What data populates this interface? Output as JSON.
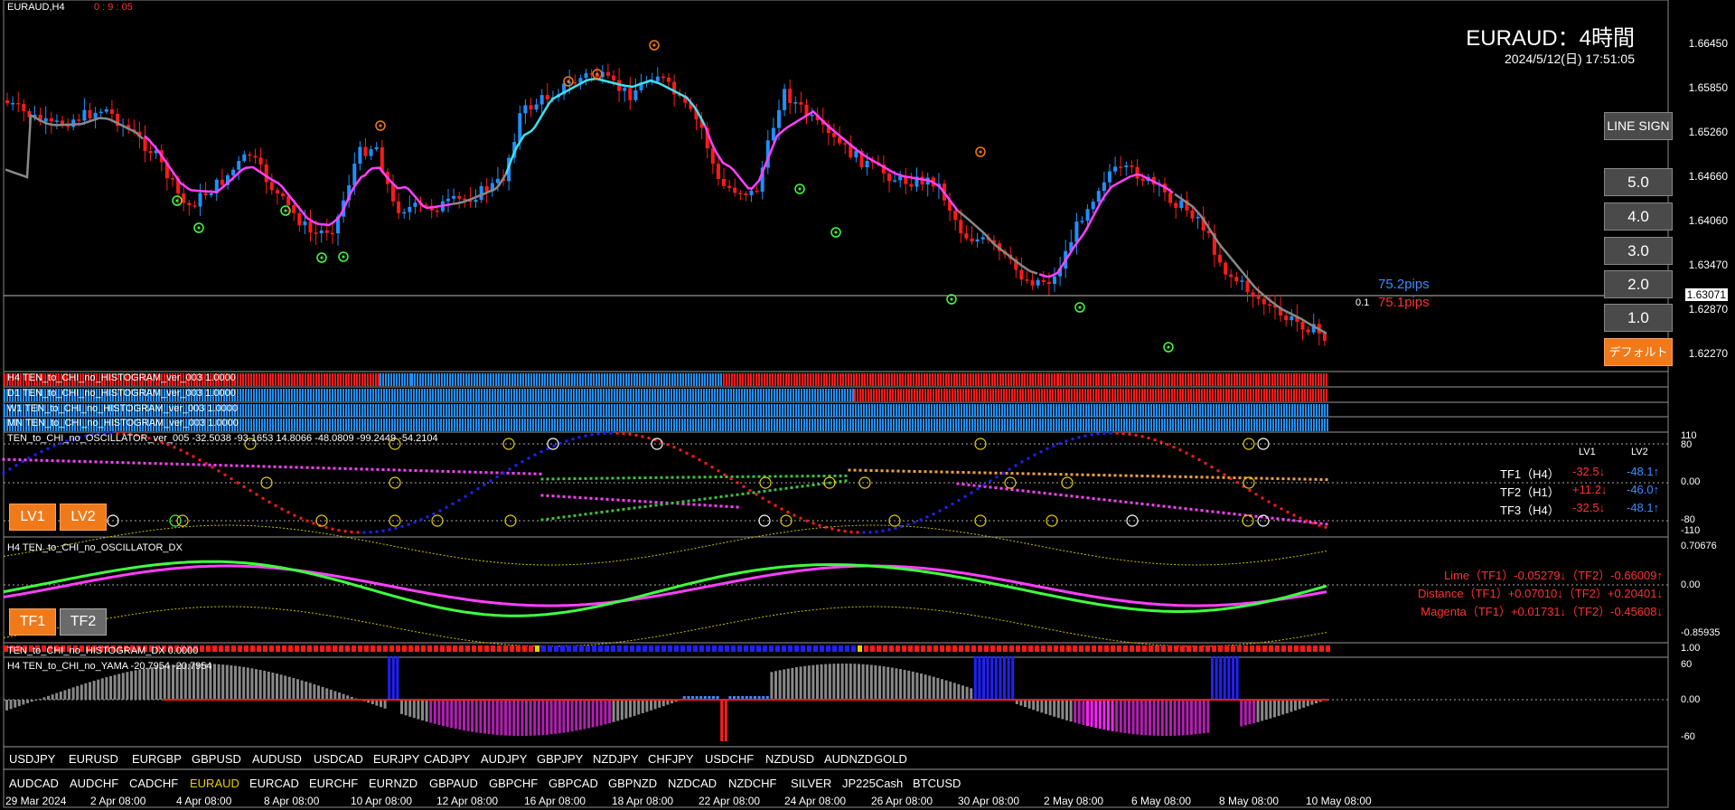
{
  "window": {
    "title": "EURAUD,H4",
    "countdown": "0 : 9 : 05",
    "heading": "EURAUD：4時間",
    "datetime": "2024/5/12(日) 17:51:05"
  },
  "price_axis": [
    "1.66450",
    "1.65850",
    "1.65260",
    "1.64660",
    "1.64060",
    "1.63470",
    "1.63071",
    "1.62870",
    "1.62270"
  ],
  "current_price": "1.63071",
  "pips": {
    "upper": "75.2pips",
    "lower": "75.1pips",
    "small": "0.1"
  },
  "buttons": {
    "line_sign": "LINE SIGN",
    "levels": [
      "5.0",
      "4.0",
      "3.0",
      "2.0",
      "1.0"
    ],
    "default": "デフォルト",
    "lv1": "LV1",
    "lv2": "LV2",
    "tf1": "TF1",
    "tf2": "TF2"
  },
  "histograms": [
    "H4 TEN_to_CHI_no_HISTOGRAM_ver_003 1.0000",
    "D1 TEN_to_CHI_no_HISTOGRAM_ver_003 1.0000",
    "W1 TEN_to_CHI_no_HISTOGRAM_ver_003 1.0000",
    "MN TEN_to_CHI_no_HISTOGRAM_ver_003 1.0000"
  ],
  "oscillator": {
    "title": "TEN_to_CHI_no_OSCILLATOR_ver_005 -32.5038 -93.1653 14.8066 -48.0809 -99.2449 -54.2104",
    "axis": [
      "110",
      "80",
      "0.00",
      "-80",
      "-110"
    ],
    "header": {
      "lv1": "LV1",
      "lv2": "LV2"
    },
    "rows": [
      {
        "label": "TF1（H4）",
        "lv1": "-32.5↓",
        "lv2": "-48.1↑"
      },
      {
        "label": "TF2（H1）",
        "lv1": "+11.2↓",
        "lv2": "-46.0↑"
      },
      {
        "label": "TF3（H4）",
        "lv1": "-32.5↓",
        "lv2": "-48.1↑"
      }
    ]
  },
  "dx": {
    "title": "H4 TEN_to_CHI_no_OSCILLATOR_DX",
    "axis": [
      "0.70676",
      "0.00",
      "-0.85935"
    ],
    "lines": [
      "Lime（TF1）-0.05279↓（TF2）-0.66009↑",
      "Distance（TF1）+0.07010↓（TF2）+0.20401↓",
      "Magenta（TF1）+0.01731↓（TF2）-0.45608↓"
    ]
  },
  "dx_hist": {
    "title": "TEN_to_CHI_no_HISTOGRAM_DX 0.0000",
    "axis": "1.00"
  },
  "yama": {
    "title": "H4  TEN_to_CHI_no_YAMA -20.7954 -20.7954",
    "axis": [
      "60",
      "0.00",
      "-60"
    ]
  },
  "symbols_row1": [
    "USDJPY",
    "EURUSD",
    "EURGBP",
    "GBPUSD",
    "AUDUSD",
    "USDCAD",
    "EURJPY",
    "CADJPY",
    "AUDJPY",
    "GBPJPY",
    "NZDJPY",
    "CHFJPY",
    "USDCHF",
    "NZDUSD",
    "AUDNZD",
    "GOLD"
  ],
  "symbols_row2": [
    "AUDCAD",
    "AUDCHF",
    "CADCHF",
    "EURAUD",
    "EURCAD",
    "EURCHF",
    "EURNZD",
    "GBPAUD",
    "GBPCHF",
    "GBPCAD",
    "GBPNZD",
    "NZDCAD",
    "NZDCHF",
    "SILVER",
    "JP225Cash",
    "BTCUSD"
  ],
  "active_symbol": "EURAUD",
  "dates": [
    "29 Mar 2024",
    "2 Apr 08:00",
    "4 Apr 08:00",
    "8 Apr 08:00",
    "10 Apr 08:00",
    "12 Apr 08:00",
    "16 Apr 08:00",
    "18 Apr 08:00",
    "22 Apr 08:00",
    "24 Apr 08:00",
    "26 Apr 08:00",
    "30 Apr 08:00",
    "2 May 08:00",
    "6 May 08:00",
    "8 May 08:00",
    "10 May 08:00"
  ],
  "colors": {
    "bull": "#1e90ff",
    "bear": "#ff1a1a",
    "magenta": "#ff40ff",
    "cyan": "#40e0f0",
    "lime": "#40ff40",
    "orange": "#f07a1a"
  }
}
